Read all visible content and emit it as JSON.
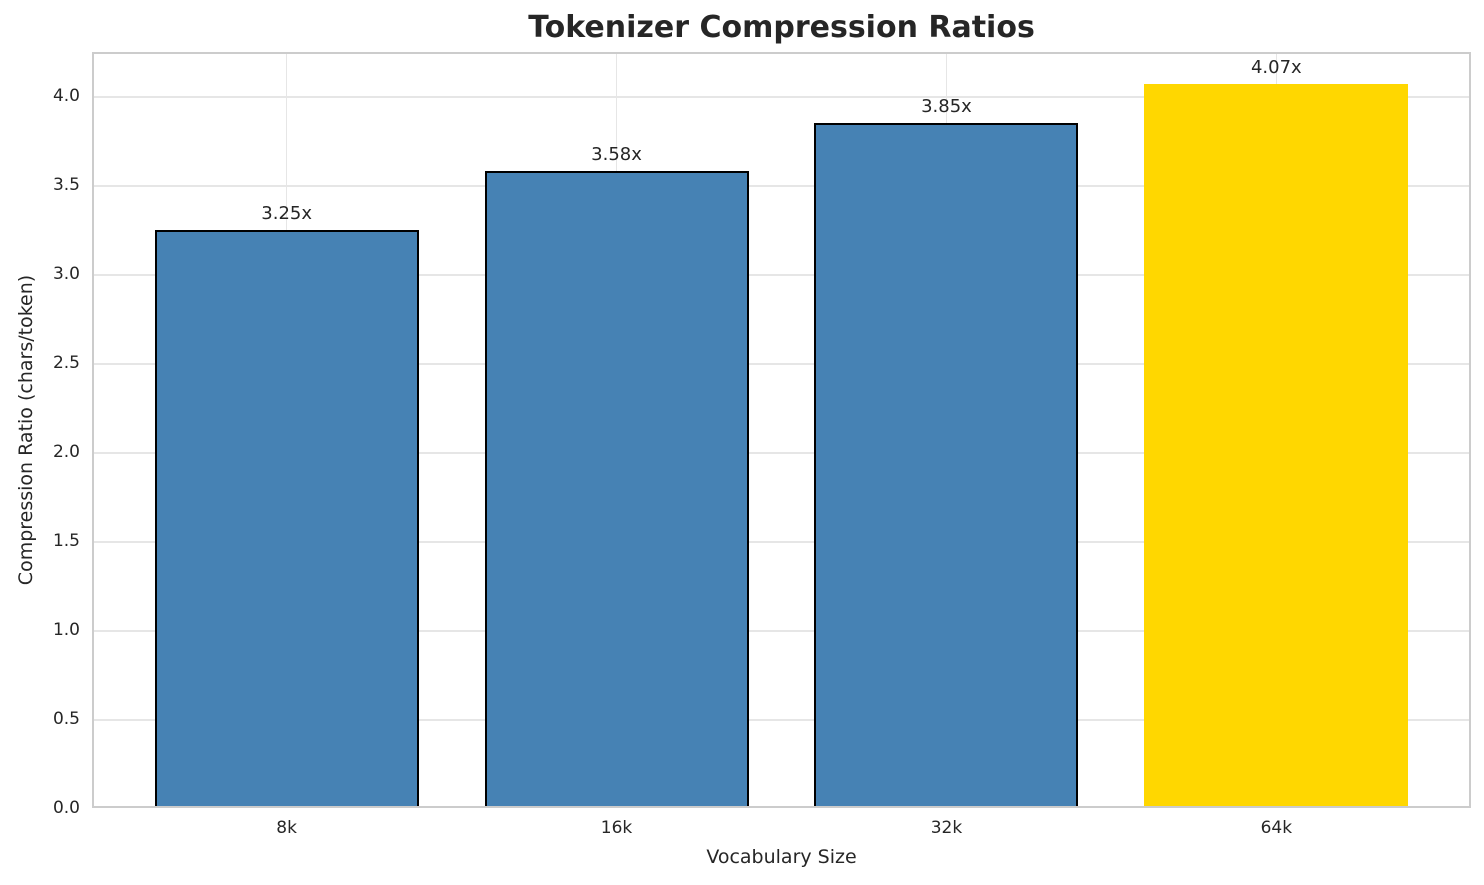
{
  "chart_data": {
    "type": "bar",
    "title": "Tokenizer Compression Ratios",
    "xlabel": "Vocabulary Size",
    "ylabel": "Compression Ratio (chars/token)",
    "categories": [
      "8k",
      "16k",
      "32k",
      "64k"
    ],
    "values": [
      3.25,
      3.58,
      3.85,
      4.07
    ],
    "bar_labels": [
      "3.25x",
      "3.58x",
      "3.85x",
      "4.07x"
    ],
    "bar_colors": [
      "#4682B4",
      "#4682B4",
      "#4682B4",
      "#FFD700"
    ],
    "bar_edge_colors": [
      "#000000",
      "#000000",
      "#000000",
      "none"
    ],
    "highlight_color": "#FFD700",
    "base_color": "#4682B4",
    "ylim": [
      0,
      4.25
    ],
    "yticks": [
      0.0,
      0.5,
      1.0,
      1.5,
      2.0,
      2.5,
      3.0,
      3.5,
      4.0
    ],
    "ytick_labels": [
      "0.0",
      "0.5",
      "1.0",
      "1.5",
      "2.0",
      "2.5",
      "3.0",
      "3.5",
      "4.0"
    ],
    "grid": true,
    "grid_color": "#e6e6e6",
    "legend": "none"
  }
}
